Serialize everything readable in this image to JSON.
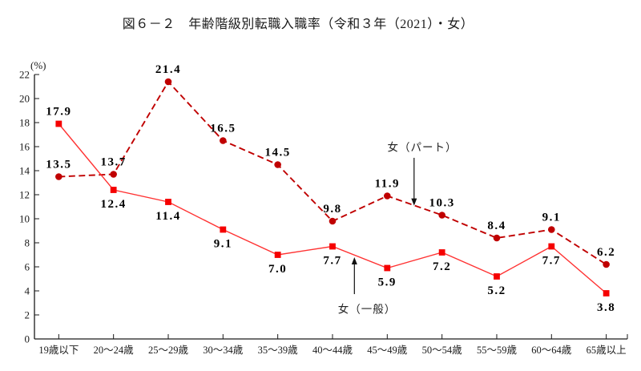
{
  "title": "図６－２　年齢階級別転職入職率（令和３年（2021）・女）",
  "chart_data": {
    "type": "line",
    "title": "図６－２　年齢階級別転職入職率（令和３年（2021）・女）",
    "unit_label": "(%)",
    "categories": [
      "19歳以下",
      "20～24歳",
      "25～29歳",
      "30～34歳",
      "35～39歳",
      "40～44歳",
      "45～49歳",
      "50～54歳",
      "55～59歳",
      "60～64歳",
      "65歳以上"
    ],
    "ylim": [
      0,
      22
    ],
    "yticks": [
      0,
      2,
      4,
      6,
      8,
      10,
      12,
      14,
      16,
      18,
      20,
      22
    ],
    "grid": false,
    "legend_position": "inline-annotations",
    "series": [
      {
        "name": "女（パート）",
        "line_style": "dashed",
        "marker": "circle",
        "color": "#c00000",
        "marker_color": "#c00000",
        "values": [
          13.5,
          13.7,
          21.4,
          16.5,
          14.5,
          9.8,
          11.9,
          10.3,
          8.4,
          9.1,
          6.2
        ],
        "label_positions": [
          "above",
          "above",
          "above",
          "above",
          "above",
          "above",
          "above",
          "above",
          "above",
          "above",
          "above"
        ]
      },
      {
        "name": "女（一般）",
        "line_style": "solid",
        "marker": "square",
        "color": "#ff3232",
        "marker_color": "#f50000",
        "values": [
          17.9,
          12.4,
          11.4,
          9.1,
          7.0,
          7.7,
          5.9,
          7.2,
          5.2,
          7.7,
          3.8
        ],
        "label_positions": [
          "above",
          "below",
          "below",
          "below",
          "below",
          "below",
          "below",
          "below",
          "below",
          "below",
          "below"
        ]
      }
    ],
    "annotations": [
      {
        "text": "女（パート）",
        "series": 0,
        "text_xi": 6.64,
        "text_v": 15.93,
        "arrow_xi": 6.49,
        "arrow_v_from": 15.07,
        "arrow_v_to": 11.09,
        "direction": "down"
      },
      {
        "text": "女（一般）",
        "series": 1,
        "text_xi": 5.63,
        "text_v": 2.47,
        "arrow_xi": 5.4,
        "arrow_v_from": 3.73,
        "arrow_v_to": 6.8,
        "direction": "up"
      }
    ],
    "colors": {
      "axis": "#1a1a1a",
      "tick_text": "#1a1a1a",
      "data_label_text": "#000000",
      "annotation_text": "#222222",
      "annotation_arrow": "#111111"
    }
  }
}
